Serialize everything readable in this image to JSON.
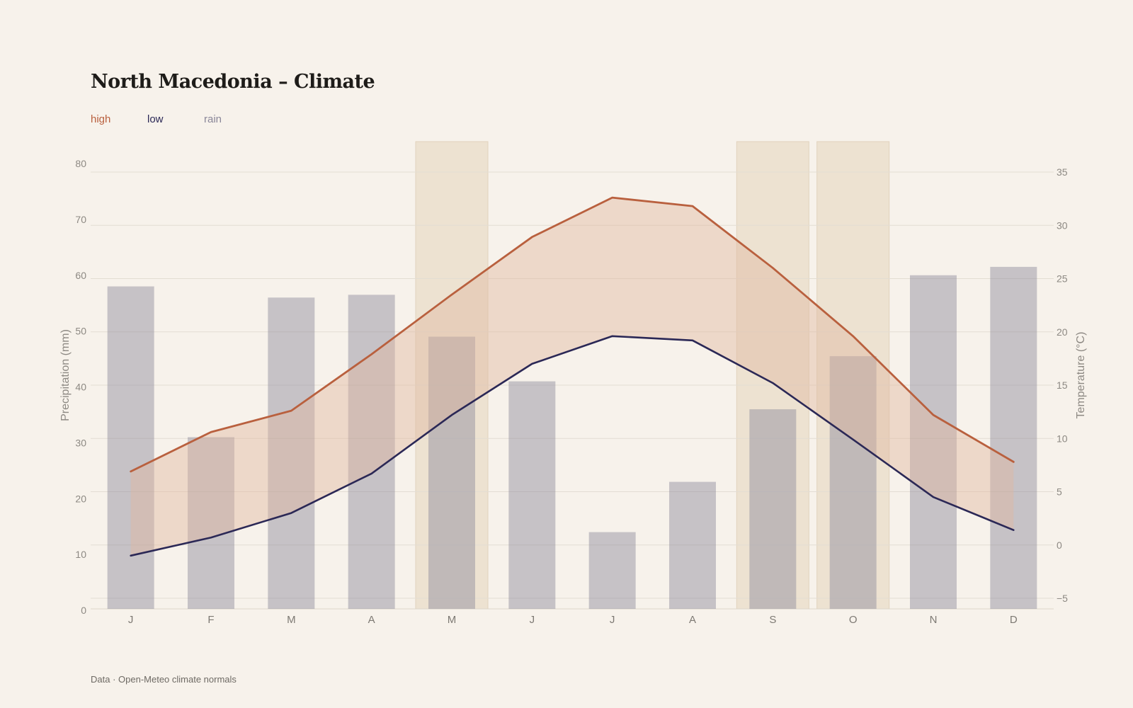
{
  "title": "North Macedonia – Climate",
  "legend": {
    "high": "high",
    "low": "low",
    "rain": "rain"
  },
  "footer": "Data · Open-Meteo climate normals",
  "colors": {
    "background": "#f7f2eb",
    "high": "#b9603e",
    "low": "#2b2856",
    "rain": "#8a8799",
    "band_fill": "#e0b7a0",
    "highlight_months": "#e9dcc8"
  },
  "chart_data": {
    "type": "bar+line",
    "categories": [
      "J",
      "F",
      "M",
      "A",
      "M",
      "J",
      "J",
      "A",
      "S",
      "O",
      "N",
      "D"
    ],
    "highlighted_months": [
      4,
      8,
      9
    ],
    "series": [
      {
        "name": "rain",
        "type": "bar",
        "axis": "left",
        "values": [
          58,
          31,
          56,
          56.5,
          49,
          41,
          14,
          23,
          36,
          45.5,
          60,
          61.5
        ]
      },
      {
        "name": "high",
        "type": "line",
        "axis": "right",
        "values": [
          6.9,
          10.6,
          12.6,
          17.9,
          23.5,
          28.9,
          32.6,
          31.8,
          26.0,
          19.6,
          12.2,
          7.8
        ]
      },
      {
        "name": "low",
        "type": "line",
        "axis": "right",
        "values": [
          -1.0,
          0.7,
          3.0,
          6.7,
          12.2,
          17.0,
          19.6,
          19.2,
          15.2,
          9.9,
          4.5,
          1.4
        ]
      }
    ],
    "y_left": {
      "label": "Precipitation (mm)",
      "min": 0,
      "max": 80,
      "ticks": [
        0,
        10,
        20,
        30,
        40,
        50,
        60,
        70,
        80
      ]
    },
    "y_right": {
      "label": "Temperature (°C)",
      "min": -5,
      "max": 35,
      "ticks": [
        "−5",
        "0",
        "5",
        "10",
        "15",
        "20",
        "25",
        "30",
        "35"
      ]
    },
    "grid": true,
    "legend_position": "top-left"
  }
}
